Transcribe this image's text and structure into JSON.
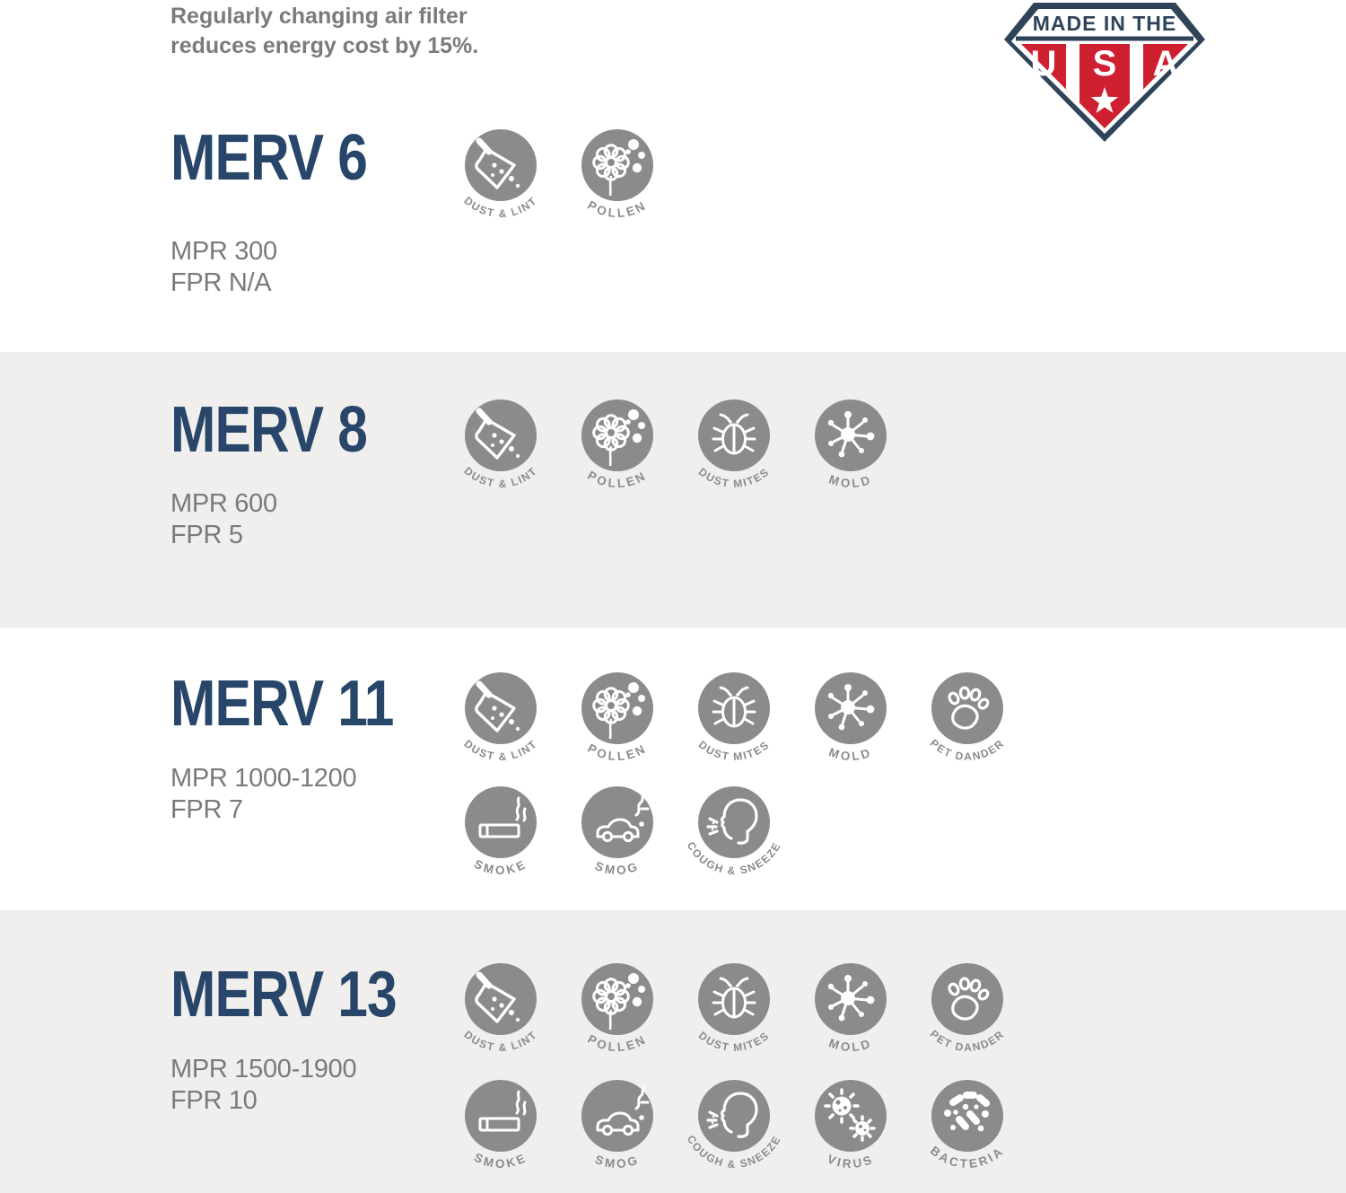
{
  "note": {
    "text": "Regularly changing air filter reduces energy cost by 15%."
  },
  "badge": {
    "banner": "MADE IN THE",
    "letters": [
      "U",
      "S",
      "A"
    ]
  },
  "sections": [
    {
      "name": "MERV 6",
      "mpr": "MPR 300",
      "fpr": "FPR N/A",
      "rows": [
        [
          "dust-lint",
          "pollen"
        ]
      ]
    },
    {
      "name": "MERV 8",
      "mpr": "MPR 600",
      "fpr": "FPR 5",
      "rows": [
        [
          "dust-lint",
          "pollen",
          "dust-mites",
          "mold"
        ]
      ]
    },
    {
      "name": "MERV 11",
      "mpr": "MPR 1000-1200",
      "fpr": "FPR 7",
      "rows": [
        [
          "dust-lint",
          "pollen",
          "dust-mites",
          "mold",
          "pet-dander"
        ],
        [
          "smoke",
          "smog",
          "cough-sneeze"
        ]
      ]
    },
    {
      "name": "MERV 13",
      "mpr": "MPR 1500-1900",
      "fpr": "FPR 10",
      "rows": [
        [
          "dust-lint",
          "pollen",
          "dust-mites",
          "mold",
          "pet-dander"
        ],
        [
          "smoke",
          "smog",
          "cough-sneeze",
          "virus",
          "bacteria"
        ]
      ]
    }
  ],
  "icon_labels": {
    "dust-lint": "DUST & LINT",
    "pollen": "POLLEN",
    "dust-mites": "DUST MITES",
    "mold": "MOLD",
    "pet-dander": "PET DANDER",
    "smoke": "SMOKE",
    "smog": "SMOG",
    "cough-sneeze": "COUGH & SNEEZE",
    "virus": "VIRUS",
    "bacteria": "BACTERIA"
  },
  "colors": {
    "heading_navy": "#274669",
    "text_gray": "#7a7a7a",
    "icon_gray": "#8b8b8b",
    "band_gray": "#f0efee",
    "badge_navy": "#2f4458",
    "badge_red": "#ce2030",
    "white": "#ffffff"
  }
}
